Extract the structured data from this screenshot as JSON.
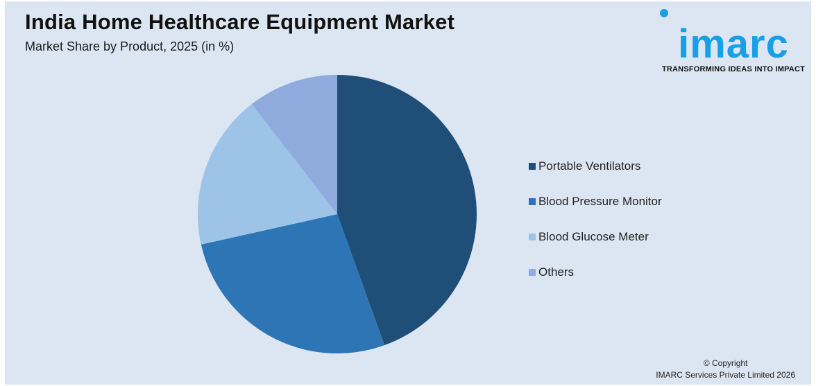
{
  "header": {
    "title": "India Home Healthcare Equipment Market",
    "subtitle": "Market Share by Product, 2025 (in %)"
  },
  "logo": {
    "wordmark": "imarc",
    "tagline": "TRANSFORMING IDEAS INTO IMPACT",
    "color": "#1a9ee6"
  },
  "footer": {
    "copyright_line1": "© Copyright",
    "copyright_line2": "IMARC Services Private Limited 2026"
  },
  "chart_data": {
    "type": "pie",
    "title": "India Home Healthcare Equipment Market",
    "subtitle": "Market Share by Product, 2025 (in %)",
    "categories": [
      "Portable Ventilators",
      "Blood Pressure Monitor",
      "Blood Glucose Meter",
      "Others"
    ],
    "values": [
      44.5,
      27,
      18,
      10.5
    ],
    "colors": [
      "#1f4e79",
      "#2e75b6",
      "#9dc3e6",
      "#8faadc"
    ],
    "start_angle": "12 o'clock",
    "direction": "clockwise",
    "legend_position": "right"
  }
}
